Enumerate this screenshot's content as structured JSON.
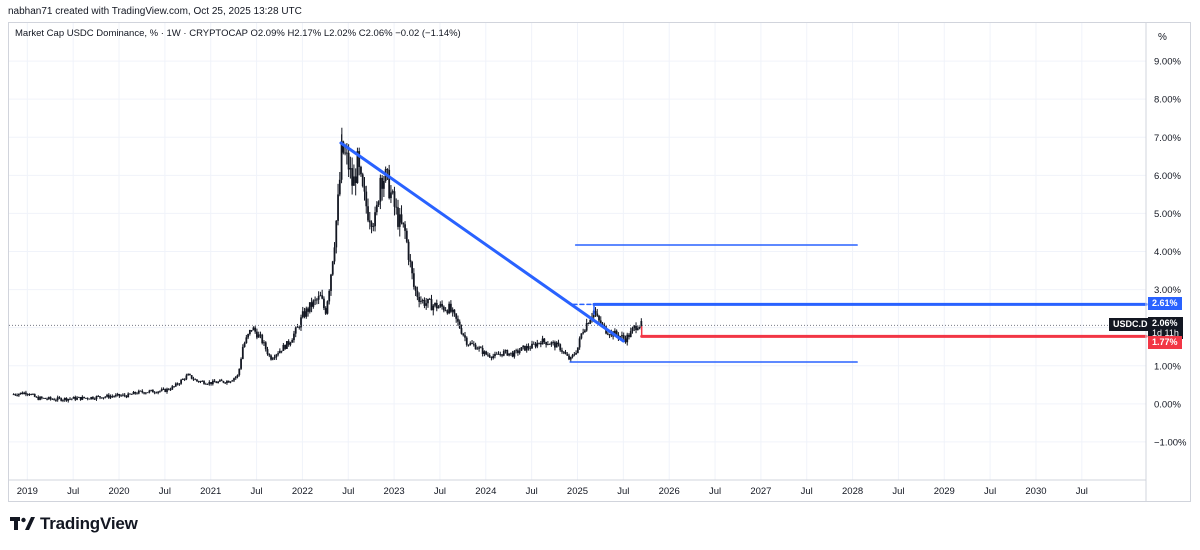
{
  "header": {
    "credit": "nabhan71 created with TradingView.com, Oct 25, 2025 13:28 UTC",
    "legend": {
      "title": "Market Cap USDC Dominance, % · 1W · CRYPTOCAP",
      "open": "O2.09%",
      "high": "H2.17%",
      "low": "L2.02%",
      "close": "C2.06%",
      "change": "−0.02 (−1.14%)"
    },
    "unit_label": "%"
  },
  "price_tags": {
    "upper_level": "2.61%",
    "symbol": "USDC.D",
    "current": "2.06%",
    "countdown": "1d 11h",
    "lower_level": "1.77%"
  },
  "colors": {
    "accent_blue": "#2962ff",
    "level_red": "#f23645",
    "candle": "#131722",
    "grid": "#f0f3fa"
  },
  "footer": {
    "brand": "TradingView"
  },
  "chart_data": {
    "type": "candlestick",
    "title": "Market Cap USDC Dominance, % · 1W · CRYPTOCAP",
    "ylabel": "%",
    "ylim": [
      -2.0,
      10.0
    ],
    "xlim": [
      2018.8,
      2031.2
    ],
    "y_ticks": [
      {
        "value": 9,
        "label": "9.00%"
      },
      {
        "value": 8,
        "label": "8.00%"
      },
      {
        "value": 7,
        "label": "7.00%"
      },
      {
        "value": 6,
        "label": "6.00%"
      },
      {
        "value": 5,
        "label": "5.00%"
      },
      {
        "value": 4,
        "label": "4.00%"
      },
      {
        "value": 3,
        "label": "3.00%"
      },
      {
        "value": 2,
        "label": "2.00%"
      },
      {
        "value": 1,
        "label": "1.00%"
      },
      {
        "value": 0,
        "label": "0.00%"
      },
      {
        "value": -1,
        "label": "−1.00%"
      }
    ],
    "x_ticks": [
      {
        "t": 2019.0,
        "label": "2019"
      },
      {
        "t": 2019.5,
        "label": "Jul"
      },
      {
        "t": 2020.0,
        "label": "2020"
      },
      {
        "t": 2020.5,
        "label": "Jul"
      },
      {
        "t": 2021.0,
        "label": "2021"
      },
      {
        "t": 2021.5,
        "label": "Jul"
      },
      {
        "t": 2022.0,
        "label": "2022"
      },
      {
        "t": 2022.5,
        "label": "Jul"
      },
      {
        "t": 2023.0,
        "label": "2023"
      },
      {
        "t": 2023.5,
        "label": "Jul"
      },
      {
        "t": 2024.0,
        "label": "2024"
      },
      {
        "t": 2024.5,
        "label": "Jul"
      },
      {
        "t": 2025.0,
        "label": "2025"
      },
      {
        "t": 2025.5,
        "label": "Jul"
      },
      {
        "t": 2026.0,
        "label": "2026"
      },
      {
        "t": 2026.5,
        "label": "Jul"
      },
      {
        "t": 2027.0,
        "label": "2027"
      },
      {
        "t": 2027.5,
        "label": "Jul"
      },
      {
        "t": 2028.0,
        "label": "2028"
      },
      {
        "t": 2028.5,
        "label": "Jul"
      },
      {
        "t": 2029.0,
        "label": "2029"
      },
      {
        "t": 2029.5,
        "label": "Jul"
      },
      {
        "t": 2030.0,
        "label": "2030"
      },
      {
        "t": 2030.5,
        "label": "Jul"
      }
    ],
    "price_path": [
      [
        2018.85,
        0.25
      ],
      [
        2019.0,
        0.3
      ],
      [
        2019.1,
        0.15
      ],
      [
        2019.3,
        0.12
      ],
      [
        2019.6,
        0.15
      ],
      [
        2019.9,
        0.2
      ],
      [
        2020.1,
        0.22
      ],
      [
        2020.2,
        0.3
      ],
      [
        2020.5,
        0.35
      ],
      [
        2020.6,
        0.45
      ],
      [
        2020.75,
        0.75
      ],
      [
        2020.85,
        0.6
      ],
      [
        2021.0,
        0.55
      ],
      [
        2021.2,
        0.6
      ],
      [
        2021.3,
        0.75
      ],
      [
        2021.35,
        1.5
      ],
      [
        2021.45,
        2.0
      ],
      [
        2021.55,
        1.7
      ],
      [
        2021.65,
        1.2
      ],
      [
        2021.75,
        1.4
      ],
      [
        2021.85,
        1.6
      ],
      [
        2021.95,
        2.0
      ],
      [
        2022.0,
        2.3
      ],
      [
        2022.1,
        2.6
      ],
      [
        2022.2,
        2.8
      ],
      [
        2022.25,
        2.4
      ],
      [
        2022.3,
        3.2
      ],
      [
        2022.35,
        4.3
      ],
      [
        2022.4,
        5.6
      ],
      [
        2022.43,
        6.7
      ],
      [
        2022.5,
        6.3
      ],
      [
        2022.55,
        5.7
      ],
      [
        2022.6,
        6.3
      ],
      [
        2022.65,
        5.6
      ],
      [
        2022.72,
        5.0
      ],
      [
        2022.8,
        4.8
      ],
      [
        2022.85,
        6.0
      ],
      [
        2022.92,
        5.9
      ],
      [
        2023.0,
        5.2
      ],
      [
        2023.05,
        4.8
      ],
      [
        2023.12,
        4.5
      ],
      [
        2023.18,
        3.6
      ],
      [
        2023.22,
        3.0
      ],
      [
        2023.3,
        2.7
      ],
      [
        2023.4,
        2.6
      ],
      [
        2023.5,
        2.55
      ],
      [
        2023.6,
        2.5
      ],
      [
        2023.7,
        2.1
      ],
      [
        2023.8,
        1.6
      ],
      [
        2023.9,
        1.5
      ],
      [
        2024.0,
        1.3
      ],
      [
        2024.1,
        1.25
      ],
      [
        2024.2,
        1.35
      ],
      [
        2024.3,
        1.3
      ],
      [
        2024.4,
        1.45
      ],
      [
        2024.5,
        1.5
      ],
      [
        2024.6,
        1.65
      ],
      [
        2024.7,
        1.6
      ],
      [
        2024.8,
        1.5
      ],
      [
        2024.88,
        1.25
      ],
      [
        2024.92,
        1.15
      ],
      [
        2025.0,
        1.45
      ],
      [
        2025.05,
        1.9
      ],
      [
        2025.12,
        2.2
      ],
      [
        2025.18,
        2.45
      ],
      [
        2025.22,
        2.2
      ],
      [
        2025.3,
        1.95
      ],
      [
        2025.38,
        1.85
      ],
      [
        2025.45,
        1.8
      ],
      [
        2025.52,
        1.7
      ],
      [
        2025.58,
        1.85
      ],
      [
        2025.62,
        2.0
      ],
      [
        2025.66,
        2.1
      ],
      [
        2025.7,
        2.06
      ]
    ],
    "drawings": [
      {
        "name": "downtrend-line",
        "color": "#2962ff",
        "width": 3,
        "points": [
          [
            2022.42,
            6.85
          ],
          [
            2025.5,
            1.65
          ]
        ]
      },
      {
        "name": "upper-target-line",
        "color": "#2962ff",
        "width": 1.5,
        "points": [
          [
            2024.98,
            4.17
          ],
          [
            2028.05,
            4.17
          ]
        ]
      },
      {
        "name": "resistance-line",
        "color": "#2962ff",
        "width": 3,
        "points": [
          [
            2025.18,
            2.61
          ],
          [
            2031.2,
            2.61
          ]
        ]
      },
      {
        "name": "resistance-stub",
        "color": "#2962ff",
        "width": 1.5,
        "dash": true,
        "points": [
          [
            2024.95,
            2.61
          ],
          [
            2025.15,
            2.61
          ]
        ]
      },
      {
        "name": "resistance-riser",
        "color": "#2962ff",
        "width": 1.5,
        "points": [
          [
            2025.18,
            2.35
          ],
          [
            2025.18,
            2.61
          ]
        ]
      },
      {
        "name": "support-line",
        "color": "#f23645",
        "width": 3,
        "points": [
          [
            2025.7,
            1.77
          ],
          [
            2031.2,
            1.77
          ]
        ]
      },
      {
        "name": "support-riser",
        "color": "#f23645",
        "width": 1.5,
        "points": [
          [
            2025.7,
            1.77
          ],
          [
            2025.7,
            2.02
          ]
        ]
      },
      {
        "name": "lower-target-line",
        "color": "#2962ff",
        "width": 1.5,
        "points": [
          [
            2024.92,
            1.1
          ],
          [
            2028.05,
            1.1
          ]
        ]
      }
    ],
    "current_value": 2.06
  }
}
